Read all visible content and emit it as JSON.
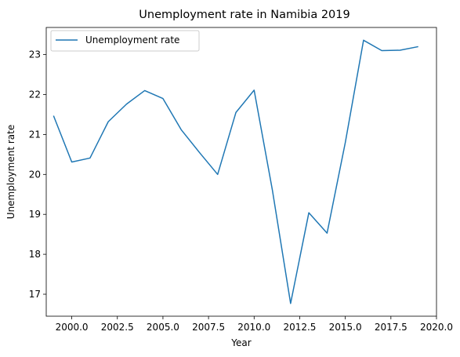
{
  "chart_data": {
    "type": "line",
    "title": "Unemployment rate in Namibia 2019",
    "xlabel": "Year",
    "ylabel": "Unemployment rate",
    "xlim": [
      1998.6,
      2020.0
    ],
    "ylim": [
      16.45,
      23.68
    ],
    "xticks": [
      2000.0,
      2002.5,
      2005.0,
      2007.5,
      2010.0,
      2012.5,
      2015.0,
      2017.5,
      2020.0
    ],
    "xtick_labels": [
      "2000.0",
      "2002.5",
      "2005.0",
      "2007.5",
      "2010.0",
      "2012.5",
      "2015.0",
      "2017.5",
      "2020.0"
    ],
    "yticks": [
      17,
      18,
      19,
      20,
      21,
      22,
      23
    ],
    "ytick_labels": [
      "17",
      "18",
      "19",
      "20",
      "21",
      "22",
      "23"
    ],
    "grid": false,
    "legend_position": "top-left",
    "colors": {
      "series": "#1f77b4"
    },
    "series": [
      {
        "name": "Unemployment rate",
        "x": [
          1999,
          2000,
          2001,
          2002,
          2003,
          2004,
          2005,
          2006,
          2007,
          2008,
          2009,
          2010,
          2011,
          2012,
          2013,
          2014,
          2015,
          2016,
          2017,
          2018,
          2019
        ],
        "values": [
          21.47,
          20.31,
          20.41,
          21.32,
          21.76,
          22.1,
          21.9,
          21.12,
          20.55,
          20.0,
          21.55,
          22.11,
          19.61,
          16.77,
          19.04,
          18.53,
          20.8,
          23.36,
          23.1,
          23.11,
          23.2
        ]
      }
    ]
  }
}
